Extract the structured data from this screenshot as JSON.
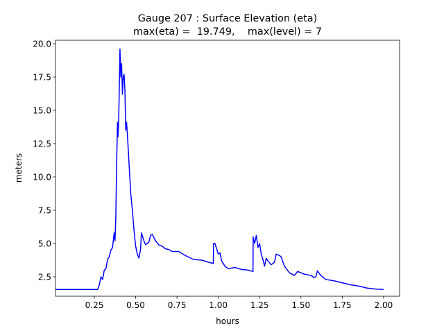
{
  "chart_data": {
    "type": "line",
    "title": "Gauge 207 : Surface Elevation (eta)",
    "subtitle": "max(eta) =  19.749,    max(level) = 7",
    "x_label": "hours",
    "y_label": "meters",
    "xlim": [
      0.015,
      2.097
    ],
    "ylim": [
      1.04,
      20.26
    ],
    "xticks": [
      0.25,
      {
        "value": 0.5,
        "label": "0.50"
      },
      0.75,
      {
        "value": 1.0,
        "label": "1.00"
      },
      1.25,
      {
        "value": 1.5,
        "label": "1.50"
      },
      1.75,
      {
        "value": 2.0,
        "label": "2.00"
      }
    ],
    "yticks": [
      2.5,
      {
        "value": 5.0,
        "label": "5.0"
      },
      7.5,
      {
        "value": 10.0,
        "label": "10.0"
      },
      12.5,
      {
        "value": 15.0,
        "label": "15.0"
      },
      17.5,
      {
        "value": 20.0,
        "label": "20.0"
      }
    ],
    "grid": false,
    "series": [
      {
        "color": "#0000ff",
        "x": [
          0.015,
          0.27,
          0.28,
          0.29,
          0.3,
          0.31,
          0.32,
          0.33,
          0.34,
          0.35,
          0.36,
          0.37,
          0.375,
          0.38,
          0.385,
          0.39,
          0.393,
          0.397,
          0.4,
          0.405,
          0.41,
          0.415,
          0.42,
          0.425,
          0.43,
          0.435,
          0.44,
          0.445,
          0.45,
          0.46,
          0.47,
          0.48,
          0.49,
          0.5,
          0.51,
          0.52,
          0.53,
          0.535,
          0.55,
          0.56,
          0.58,
          0.59,
          0.6,
          0.62,
          0.64,
          0.66,
          0.68,
          0.7,
          0.72,
          0.76,
          0.8,
          0.85,
          0.9,
          0.94,
          0.97,
          0.971,
          0.98,
          0.99,
          1.0,
          1.01,
          1.02,
          1.04,
          1.06,
          1.1,
          1.14,
          1.18,
          1.21,
          1.211,
          1.22,
          1.23,
          1.24,
          1.25,
          1.26,
          1.27,
          1.28,
          1.29,
          1.3,
          1.32,
          1.34,
          1.35,
          1.37,
          1.38,
          1.4,
          1.43,
          1.46,
          1.48,
          1.5,
          1.52,
          1.56,
          1.58,
          1.59,
          1.6,
          1.62,
          1.65,
          1.7,
          1.75,
          1.8,
          1.85,
          1.9,
          1.95,
          2.0
        ],
        "values": [
          1.55,
          1.55,
          1.9,
          2.5,
          2.3,
          3.0,
          3.1,
          3.8,
          4.0,
          4.5,
          4.7,
          5.8,
          5.2,
          7.0,
          11.0,
          14.1,
          13.0,
          14.0,
          16.0,
          19.6,
          17.5,
          18.5,
          16.2,
          17.5,
          17.7,
          16.5,
          13.5,
          14.1,
          13.2,
          11.0,
          8.8,
          7.5,
          6.0,
          4.8,
          4.2,
          3.9,
          4.6,
          5.8,
          5.2,
          4.9,
          5.1,
          5.6,
          5.7,
          5.2,
          4.9,
          4.8,
          4.6,
          4.55,
          4.4,
          4.4,
          4.1,
          3.8,
          3.75,
          3.6,
          3.5,
          5.0,
          5.0,
          4.6,
          4.2,
          4.3,
          3.7,
          3.3,
          3.1,
          3.2,
          3.05,
          3.0,
          2.9,
          5.5,
          5.0,
          5.6,
          4.7,
          5.0,
          4.2,
          3.8,
          3.3,
          3.9,
          3.7,
          3.4,
          3.6,
          4.2,
          4.1,
          4.0,
          3.3,
          2.8,
          2.6,
          2.9,
          2.8,
          2.7,
          2.6,
          2.45,
          2.5,
          2.95,
          2.6,
          2.3,
          2.2,
          2.05,
          1.9,
          1.8,
          1.65,
          1.58,
          1.55
        ]
      }
    ]
  }
}
